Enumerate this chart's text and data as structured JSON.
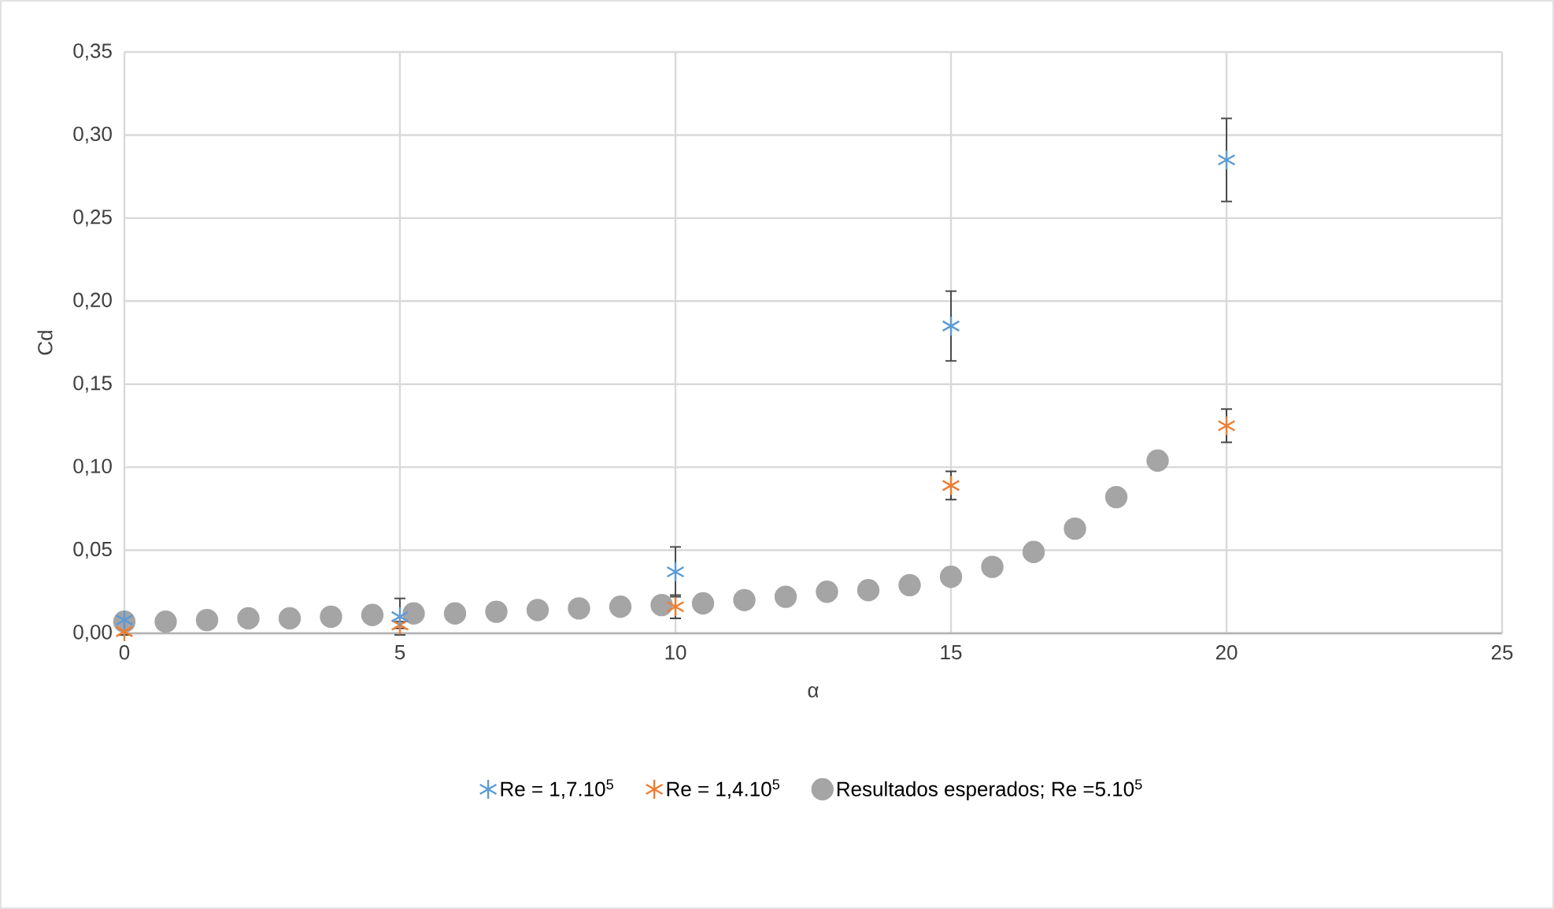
{
  "chart_data": {
    "type": "scatter",
    "xlabel": "α",
    "ylabel": "Cd",
    "xlim": [
      0,
      25
    ],
    "xticks": [
      0,
      5,
      10,
      15,
      20,
      25
    ],
    "ylim": [
      0,
      0.35
    ],
    "yticks": [
      {
        "value": 0,
        "label": "0,00"
      },
      {
        "value": 0.05,
        "label": "0,05"
      },
      {
        "value": 0.1,
        "label": "0,10"
      },
      {
        "value": 0.15,
        "label": "0,15"
      },
      {
        "value": 0.2,
        "label": "0,20"
      },
      {
        "value": 0.25,
        "label": "0,25"
      },
      {
        "value": 0.3,
        "label": "0,30"
      },
      {
        "value": 0.35,
        "label": "0,35"
      }
    ],
    "grid": true,
    "legend": "bottom",
    "series": [
      {
        "name": "Re = 1,7.10$^{5}$",
        "color": "#5b9bd5",
        "marker": "cross",
        "x": [
          0,
          5,
          10,
          15,
          20
        ],
        "values": [
          0.008,
          0.01,
          0.037,
          0.185,
          0.285
        ],
        "errors": [
          0.003,
          0.011,
          0.015,
          0.021,
          0.025
        ]
      },
      {
        "name": "Re = 1,4.10$^{5}$",
        "color": "#ed7d31",
        "marker": "cross",
        "x": [
          0,
          5,
          10,
          15,
          20
        ],
        "values": [
          0.001,
          0.005,
          0.016,
          0.089,
          0.125
        ],
        "errors": [
          0.002,
          0.002,
          0.007,
          0.0085,
          0.01
        ]
      },
      {
        "name": "Resultados esperados;  Re =5.10$^{5}$",
        "color": "#a5a5a5",
        "marker": "circle",
        "x": [
          0,
          0.75,
          1.5,
          2.25,
          3,
          3.75,
          4.5,
          5.25,
          6,
          6.75,
          7.5,
          8.25,
          9,
          9.75,
          10.5,
          11.25,
          12,
          12.75,
          13.5,
          14.25,
          15,
          15.75,
          16.5,
          17.25,
          18,
          18.75
        ],
        "values": [
          0.007,
          0.007,
          0.008,
          0.009,
          0.009,
          0.01,
          0.011,
          0.012,
          0.012,
          0.013,
          0.014,
          0.015,
          0.016,
          0.017,
          0.018,
          0.02,
          0.022,
          0.025,
          0.026,
          0.029,
          0.034,
          0.04,
          0.049,
          0.063,
          0.082,
          0.104
        ]
      }
    ]
  }
}
